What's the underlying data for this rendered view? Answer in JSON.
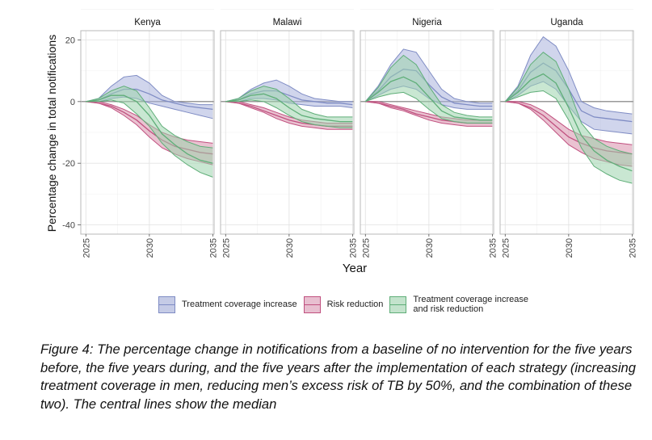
{
  "chart_data": {
    "type": "area",
    "facets": [
      "Kenya",
      "Malawi",
      "Nigeria",
      "Uganda"
    ],
    "xlabel": "Year",
    "ylabel": "Percentage change in total notifications",
    "x": [
      2025,
      2026,
      2027,
      2028,
      2029,
      2030,
      2031,
      2032,
      2033,
      2034,
      2035
    ],
    "xticks": [
      2025,
      2030,
      2035
    ],
    "yticks": [
      20,
      0,
      -20,
      -40
    ],
    "ylim": [
      -43,
      23
    ],
    "xlim": [
      2024.6,
      2035.1
    ],
    "series_names": [
      "Treatment coverage increase",
      "Risk reduction",
      "Treatment coverage increase and risk reduction"
    ],
    "series_colors": {
      "Treatment coverage increase": {
        "line": "#7f8cc4",
        "fill": "#a9b3dd"
      },
      "Risk reduction": {
        "line": "#c0507f",
        "fill": "#d98fac"
      },
      "Treatment coverage increase and risk reduction": {
        "line": "#5fae78",
        "fill": "#9dd3ad"
      }
    },
    "panels": [
      {
        "name": "Kenya",
        "series": [
          {
            "name": "Treatment coverage increase",
            "upper": [
              0,
              1,
              5,
              8,
              8.5,
              6,
              2,
              0,
              -0.5,
              -1,
              -1
            ],
            "median": [
              0,
              0.5,
              2.5,
              4,
              4,
              2.5,
              0.5,
              -0.5,
              -1.5,
              -2,
              -2.5
            ],
            "lower": [
              0,
              0,
              1,
              1.5,
              1,
              -0.5,
              -1.5,
              -2.5,
              -3.5,
              -4.5,
              -5.5
            ]
          },
          {
            "name": "Risk reduction",
            "upper": [
              0,
              0,
              -1,
              -2.5,
              -4.5,
              -7.5,
              -10,
              -11.5,
              -12.5,
              -13,
              -13.5
            ],
            "median": [
              0,
              -0.5,
              -1.5,
              -3.5,
              -6,
              -9.5,
              -12.5,
              -14.5,
              -15.5,
              -16.5,
              -17
            ],
            "lower": [
              0,
              -0.5,
              -2,
              -4.5,
              -7.5,
              -11.5,
              -15,
              -17,
              -18.5,
              -19.5,
              -20.5
            ]
          },
          {
            "name": "Treatment coverage increase and risk reduction",
            "upper": [
              0,
              1,
              3.5,
              5,
              3.5,
              -2,
              -8,
              -11,
              -13,
              -14.5,
              -15
            ],
            "median": [
              0,
              0.5,
              2,
              2,
              0,
              -4.5,
              -10.5,
              -14,
              -17,
              -19,
              -20
            ],
            "lower": [
              0,
              0,
              0.5,
              -0.5,
              -4,
              -8,
              -13.5,
              -17.5,
              -20.5,
              -23,
              -24.5
            ]
          }
        ]
      },
      {
        "name": "Malawi",
        "series": [
          {
            "name": "Treatment coverage increase",
            "upper": [
              0,
              1,
              4,
              6,
              7,
              5,
              2.5,
              1,
              0.5,
              0,
              0
            ],
            "median": [
              0,
              0.5,
              2.5,
              3.5,
              3.5,
              2,
              0.5,
              0,
              -0.5,
              -0.5,
              -1
            ],
            "lower": [
              0,
              0,
              1,
              1,
              0.5,
              -0.5,
              -1,
              -1.5,
              -1.5,
              -1.5,
              -2
            ]
          },
          {
            "name": "Risk reduction",
            "upper": [
              0,
              0,
              -1,
              -2,
              -3.5,
              -5,
              -6,
              -6.5,
              -7,
              -7,
              -7
            ],
            "median": [
              0,
              -0.5,
              -1.5,
              -3,
              -4.5,
              -6,
              -7,
              -7.5,
              -8,
              -8,
              -8
            ],
            "lower": [
              0,
              -0.5,
              -2,
              -3.5,
              -5.5,
              -7,
              -8,
              -8.5,
              -9,
              -9,
              -9
            ]
          },
          {
            "name": "Treatment coverage increase and risk reduction",
            "upper": [
              0,
              1,
              3.5,
              5,
              4,
              1,
              -2.5,
              -4,
              -5,
              -5,
              -5
            ],
            "median": [
              0,
              0.5,
              2,
              2.5,
              1,
              -2,
              -4.5,
              -5.5,
              -6,
              -6.5,
              -6.5
            ],
            "lower": [
              0,
              0,
              0.5,
              0,
              -2,
              -4.5,
              -6.5,
              -7.5,
              -8,
              -8.5,
              -8.5
            ]
          }
        ]
      },
      {
        "name": "Nigeria",
        "series": [
          {
            "name": "Treatment coverage increase",
            "upper": [
              0,
              5,
              12,
              17,
              16,
              10,
              4,
              1,
              0,
              -0.5,
              -0.5
            ],
            "median": [
              0,
              3.5,
              8,
              10.5,
              10,
              5.5,
              1.5,
              -0.5,
              -1,
              -1.5,
              -1.5
            ],
            "lower": [
              0,
              2,
              4,
              5,
              4,
              1,
              -1,
              -2,
              -2.5,
              -2.5,
              -2.5
            ]
          },
          {
            "name": "Risk reduction",
            "upper": [
              0,
              0,
              -1,
              -2,
              -3,
              -4,
              -5,
              -5.5,
              -6,
              -6,
              -6
            ],
            "median": [
              0,
              -0.5,
              -1.5,
              -2.5,
              -4,
              -5,
              -6,
              -6.5,
              -7,
              -7,
              -7
            ],
            "lower": [
              0,
              -0.5,
              -2,
              -3,
              -4.5,
              -6,
              -7,
              -7.5,
              -8,
              -8,
              -8
            ]
          },
          {
            "name": "Treatment coverage increase and risk reduction",
            "upper": [
              0,
              4.5,
              11,
              15,
              12,
              5,
              -1,
              -3.5,
              -4.5,
              -5,
              -5
            ],
            "median": [
              0,
              3,
              6.5,
              8,
              6,
              1.5,
              -3,
              -5,
              -5.5,
              -6,
              -6
            ],
            "lower": [
              0,
              1.5,
              2.5,
              3,
              1,
              -2.5,
              -5.5,
              -6.5,
              -7,
              -7,
              -7
            ]
          }
        ]
      },
      {
        "name": "Uganda",
        "series": [
          {
            "name": "Treatment coverage increase",
            "upper": [
              0,
              5,
              15,
              21,
              18,
              10,
              0,
              -2,
              -3,
              -3.5,
              -4
            ],
            "median": [
              0,
              3.5,
              9.5,
              12.5,
              10,
              4,
              -3,
              -5,
              -5.5,
              -6,
              -6.5
            ],
            "lower": [
              0,
              2,
              5,
              6.5,
              4,
              -1.5,
              -6.5,
              -9,
              -9.5,
              -10,
              -10.5
            ]
          },
          {
            "name": "Risk reduction",
            "upper": [
              0,
              0,
              -1,
              -3,
              -6,
              -9,
              -11,
              -12,
              -13,
              -13.5,
              -14
            ],
            "median": [
              0,
              -0.5,
              -2,
              -4.5,
              -8,
              -11.5,
              -13.5,
              -15,
              -16,
              -16.5,
              -17
            ],
            "lower": [
              0,
              -0.5,
              -2.5,
              -6,
              -10,
              -14,
              -16.5,
              -18.5,
              -19.5,
              -20.5,
              -21
            ]
          },
          {
            "name": "Treatment coverage increase and risk reduction",
            "upper": [
              0,
              4.5,
              12,
              16,
              13,
              4,
              -7,
              -12,
              -14.5,
              -16,
              -17
            ],
            "median": [
              0,
              3,
              7,
              9,
              6,
              -2,
              -11,
              -16,
              -19,
              -21,
              -22.5
            ],
            "lower": [
              0,
              1.5,
              3,
              3.5,
              1,
              -6,
              -15,
              -21,
              -23.5,
              -25.5,
              -26.5
            ]
          }
        ]
      }
    ]
  },
  "legend": {
    "item1": "Treatment coverage increase",
    "item2": "Risk reduction",
    "item3": "Treatment coverage increase and risk reduction"
  },
  "caption": "Figure 4: The percentage change in notifications from a baseline of no intervention for the five years before, the five years during, and the five years after the implementation of each strategy (increasing treatment coverage in men, reducing men’s excess risk of TB by 50%, and the combination of these two). The central lines show the median"
}
